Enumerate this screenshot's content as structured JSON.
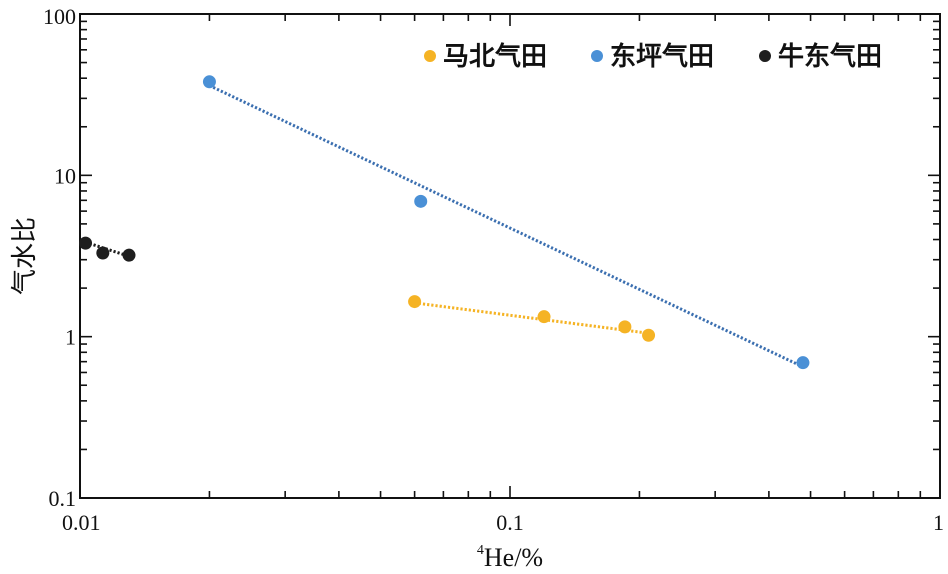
{
  "chart_data": {
    "type": "scatter",
    "title": "",
    "xlabel_sup": "4",
    "xlabel": "He/%",
    "ylabel": "气水比",
    "xscale": "log",
    "yscale": "log",
    "xlim": [
      0.01,
      1
    ],
    "ylim": [
      0.1,
      100
    ],
    "xticks": [
      "0.01",
      "0.1",
      "1"
    ],
    "yticks": [
      "0.1",
      "1",
      "10",
      "100"
    ],
    "grid": false,
    "legend_position": "top-right",
    "series": [
      {
        "name": "马北气田",
        "color": "#F5B324",
        "points": [
          [
            0.06,
            1.65
          ],
          [
            0.12,
            1.33
          ],
          [
            0.185,
            1.15
          ],
          [
            0.21,
            1.02
          ]
        ],
        "trendline": [
          [
            0.06,
            1.62
          ],
          [
            0.21,
            1.05
          ]
        ]
      },
      {
        "name": "东坪气田",
        "color": "#4A90D6",
        "points": [
          [
            0.02,
            38
          ],
          [
            0.062,
            6.9
          ],
          [
            0.48,
            0.69
          ]
        ],
        "trendline": [
          [
            0.02,
            36
          ],
          [
            0.48,
            0.65
          ]
        ]
      },
      {
        "name": "牛东气田",
        "color": "#1E1E1E",
        "points": [
          [
            0.0103,
            3.8
          ],
          [
            0.0113,
            3.3
          ],
          [
            0.013,
            3.2
          ]
        ],
        "trendline": [
          [
            0.0103,
            3.85
          ],
          [
            0.013,
            3.15
          ]
        ]
      }
    ],
    "trendline_colors": [
      "#F5B324",
      "#3B6FB0",
      "#1E1E1E"
    ]
  }
}
